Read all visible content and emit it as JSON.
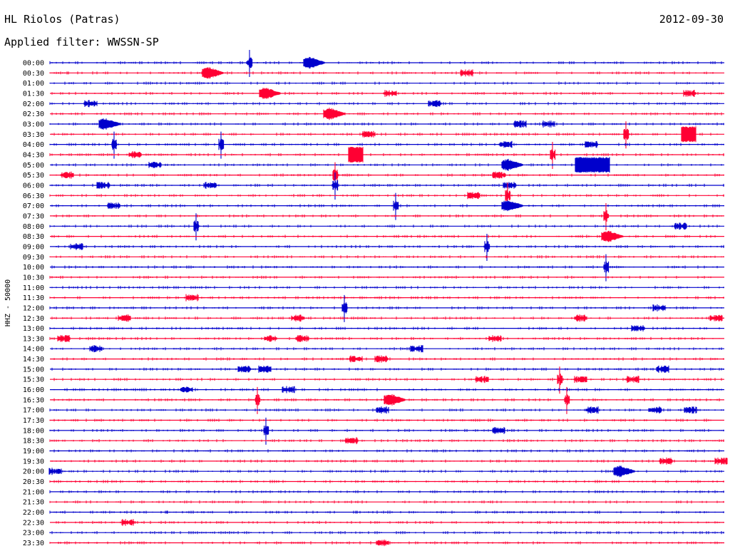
{
  "header": {
    "station": "HL Riolos (Patras)",
    "date": "2012-09-30",
    "filter": "Applied filter: WWSSN-SP"
  },
  "colors": {
    "even": "#0000cc",
    "odd": "#ff0033"
  },
  "chart_data": {
    "type": "line",
    "title": "",
    "ylabel": "HHZ - 50000",
    "traces": [
      {
        "label": "00:00",
        "events": [
          [
            350,
            "spike"
          ],
          [
            432,
            "burst"
          ]
        ]
      },
      {
        "label": "00:30",
        "events": [
          [
            95,
            "dot"
          ],
          [
            290,
            "burst"
          ],
          [
            655,
            "small"
          ]
        ]
      },
      {
        "label": "01:00",
        "events": []
      },
      {
        "label": "01:30",
        "events": [
          [
            370,
            "burst"
          ],
          [
            548,
            "small"
          ],
          [
            968,
            "small"
          ]
        ]
      },
      {
        "label": "02:00",
        "events": [
          [
            128,
            "small"
          ],
          [
            610,
            "small"
          ]
        ]
      },
      {
        "label": "02:30",
        "events": [
          [
            460,
            "burst"
          ]
        ]
      },
      {
        "label": "03:00",
        "events": [
          [
            145,
            "burst"
          ],
          [
            730,
            "small"
          ],
          [
            770,
            "small"
          ]
        ]
      },
      {
        "label": "03:30",
        "events": [
          [
            518,
            "small"
          ],
          [
            878,
            "spike"
          ],
          [
            966,
            "block"
          ]
        ]
      },
      {
        "label": "04:00",
        "events": [
          [
            160,
            "spike"
          ],
          [
            310,
            "spike"
          ],
          [
            710,
            "small"
          ],
          [
            830,
            "small"
          ]
        ]
      },
      {
        "label": "04:30",
        "events": [
          [
            190,
            "small"
          ],
          [
            499,
            "block"
          ],
          [
            775,
            "spike"
          ]
        ]
      },
      {
        "label": "05:00",
        "events": [
          [
            218,
            "small"
          ],
          [
            710,
            "burst"
          ],
          [
            831,
            "block"
          ]
        ]
      },
      {
        "label": "05:30",
        "events": [
          [
            95,
            "small"
          ],
          [
            470,
            "spike"
          ],
          [
            700,
            "small"
          ]
        ]
      },
      {
        "label": "06:00",
        "events": [
          [
            145,
            "small"
          ],
          [
            295,
            "small"
          ],
          [
            470,
            "spike"
          ],
          [
            715,
            "small"
          ]
        ]
      },
      {
        "label": "06:30",
        "events": [
          [
            665,
            "small"
          ],
          [
            712,
            "spike"
          ]
        ]
      },
      {
        "label": "07:00",
        "events": [
          [
            160,
            "small"
          ],
          [
            555,
            "spike"
          ],
          [
            710,
            "burst"
          ]
        ]
      },
      {
        "label": "07:30",
        "events": [
          [
            850,
            "spike"
          ]
        ]
      },
      {
        "label": "08:00",
        "events": [
          [
            275,
            "spike"
          ],
          [
            955,
            "small"
          ]
        ]
      },
      {
        "label": "08:30",
        "events": [
          [
            850,
            "burst"
          ]
        ]
      },
      {
        "label": "09:00",
        "events": [
          [
            108,
            "small"
          ],
          [
            683,
            "spike"
          ]
        ]
      },
      {
        "label": "09:30",
        "events": []
      },
      {
        "label": "10:00",
        "events": [
          [
            850,
            "spike"
          ]
        ]
      },
      {
        "label": "10:30",
        "events": []
      },
      {
        "label": "11:00",
        "events": []
      },
      {
        "label": "11:30",
        "events": [
          [
            270,
            "small"
          ]
        ]
      },
      {
        "label": "12:00",
        "events": [
          [
            483,
            "spike"
          ],
          [
            925,
            "small"
          ]
        ]
      },
      {
        "label": "12:30",
        "events": [
          [
            175,
            "small"
          ],
          [
            418,
            "small"
          ],
          [
            815,
            "small"
          ],
          [
            1005,
            "small"
          ]
        ]
      },
      {
        "label": "13:00",
        "events": [
          [
            895,
            "small"
          ]
        ]
      },
      {
        "label": "13:30",
        "events": [
          [
            90,
            "small"
          ],
          [
            380,
            "small"
          ],
          [
            425,
            "small"
          ],
          [
            695,
            "small"
          ]
        ]
      },
      {
        "label": "14:00",
        "events": [
          [
            135,
            "small"
          ],
          [
            585,
            "small"
          ]
        ]
      },
      {
        "label": "14:30",
        "events": [
          [
            500,
            "small"
          ],
          [
            535,
            "small"
          ]
        ]
      },
      {
        "label": "15:00",
        "events": [
          [
            343,
            "small"
          ],
          [
            372,
            "small"
          ],
          [
            930,
            "small"
          ]
        ]
      },
      {
        "label": "15:30",
        "events": [
          [
            677,
            "small"
          ],
          [
            785,
            "spike"
          ],
          [
            815,
            "small"
          ],
          [
            888,
            "small"
          ]
        ]
      },
      {
        "label": "16:00",
        "events": [
          [
            262,
            "small"
          ],
          [
            405,
            "small"
          ]
        ]
      },
      {
        "label": "16:30",
        "events": [
          [
            361,
            "spike"
          ],
          [
            545,
            "burst"
          ],
          [
            795,
            "spike"
          ]
        ]
      },
      {
        "label": "17:00",
        "events": [
          [
            537,
            "small"
          ],
          [
            831,
            "small"
          ],
          [
            919,
            "small"
          ],
          [
            969,
            "small"
          ]
        ]
      },
      {
        "label": "17:30",
        "events": []
      },
      {
        "label": "18:00",
        "events": [
          [
            373,
            "spike"
          ],
          [
            700,
            "small"
          ]
        ]
      },
      {
        "label": "18:30",
        "events": [
          [
            493,
            "small"
          ]
        ]
      },
      {
        "label": "19:00",
        "events": []
      },
      {
        "label": "19:30",
        "events": [
          [
            935,
            "small"
          ],
          [
            1012,
            "small"
          ]
        ]
      },
      {
        "label": "20:00",
        "events": [
          [
            78,
            "small"
          ],
          [
            867,
            "burst"
          ]
        ]
      },
      {
        "label": "20:30",
        "events": []
      },
      {
        "label": "21:00",
        "events": []
      },
      {
        "label": "21:30",
        "events": []
      },
      {
        "label": "22:00",
        "events": [
          [
            233,
            "dot"
          ],
          [
            500,
            "dot"
          ]
        ]
      },
      {
        "label": "22:30",
        "events": [
          [
            180,
            "small"
          ]
        ]
      },
      {
        "label": "23:00",
        "events": []
      },
      {
        "label": "23:30",
        "events": [
          [
            537,
            "small"
          ]
        ]
      }
    ]
  }
}
